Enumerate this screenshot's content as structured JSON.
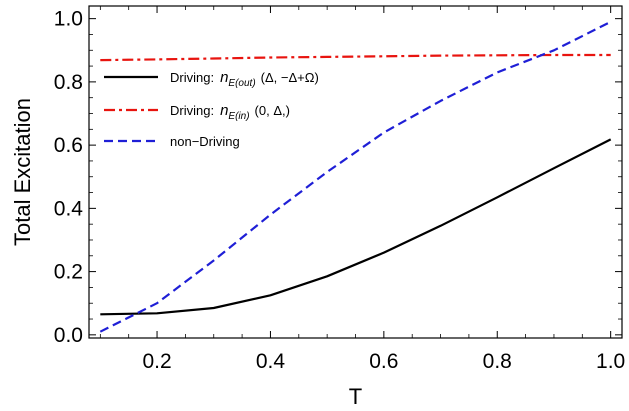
{
  "chart_data": {
    "type": "line",
    "xlabel": "T",
    "ylabel": "Total Excitation",
    "xlim": [
      0.08,
      1.02
    ],
    "ylim": [
      -0.01,
      1.04
    ],
    "x_ticks": [
      "0.2",
      "0.4",
      "0.6",
      "0.8",
      "1.0"
    ],
    "y_ticks": [
      "0.0",
      "0.2",
      "0.4",
      "0.6",
      "0.8",
      "1.0"
    ],
    "legend_placement": "upper-left",
    "series": [
      {
        "label_prefix": "Driving:",
        "label_symbol": "n",
        "label_subscript": "E(out)",
        "label_suffix": "(Δ, −Δ+Ω)",
        "color": "#000000",
        "style": "solid",
        "x": [
          0.1,
          0.2,
          0.3,
          0.4,
          0.5,
          0.6,
          0.7,
          0.8,
          0.9,
          1.0
        ],
        "values": [
          0.065,
          0.068,
          0.085,
          0.125,
          0.185,
          0.26,
          0.345,
          0.435,
          0.527,
          0.618
        ]
      },
      {
        "label_prefix": "Driving:",
        "label_symbol": "n",
        "label_subscript": "E(in)",
        "label_suffix": "(0, Δ,)",
        "color": "#e8140f",
        "style": "dashdot",
        "x": [
          0.1,
          0.2,
          0.3,
          0.4,
          0.5,
          0.6,
          0.7,
          0.8,
          0.9,
          1.0
        ],
        "values": [
          0.869,
          0.871,
          0.874,
          0.877,
          0.879,
          0.881,
          0.883,
          0.884,
          0.885,
          0.885
        ]
      },
      {
        "label_prefix": "non−Driving",
        "label_symbol": "",
        "label_subscript": "",
        "label_suffix": "",
        "color": "#1f1fd6",
        "style": "dashed",
        "x": [
          0.1,
          0.2,
          0.3,
          0.4,
          0.5,
          0.6,
          0.7,
          0.8,
          0.9,
          1.0
        ],
        "values": [
          0.01,
          0.1,
          0.235,
          0.38,
          0.515,
          0.64,
          0.74,
          0.83,
          0.9,
          0.99
        ]
      }
    ]
  }
}
